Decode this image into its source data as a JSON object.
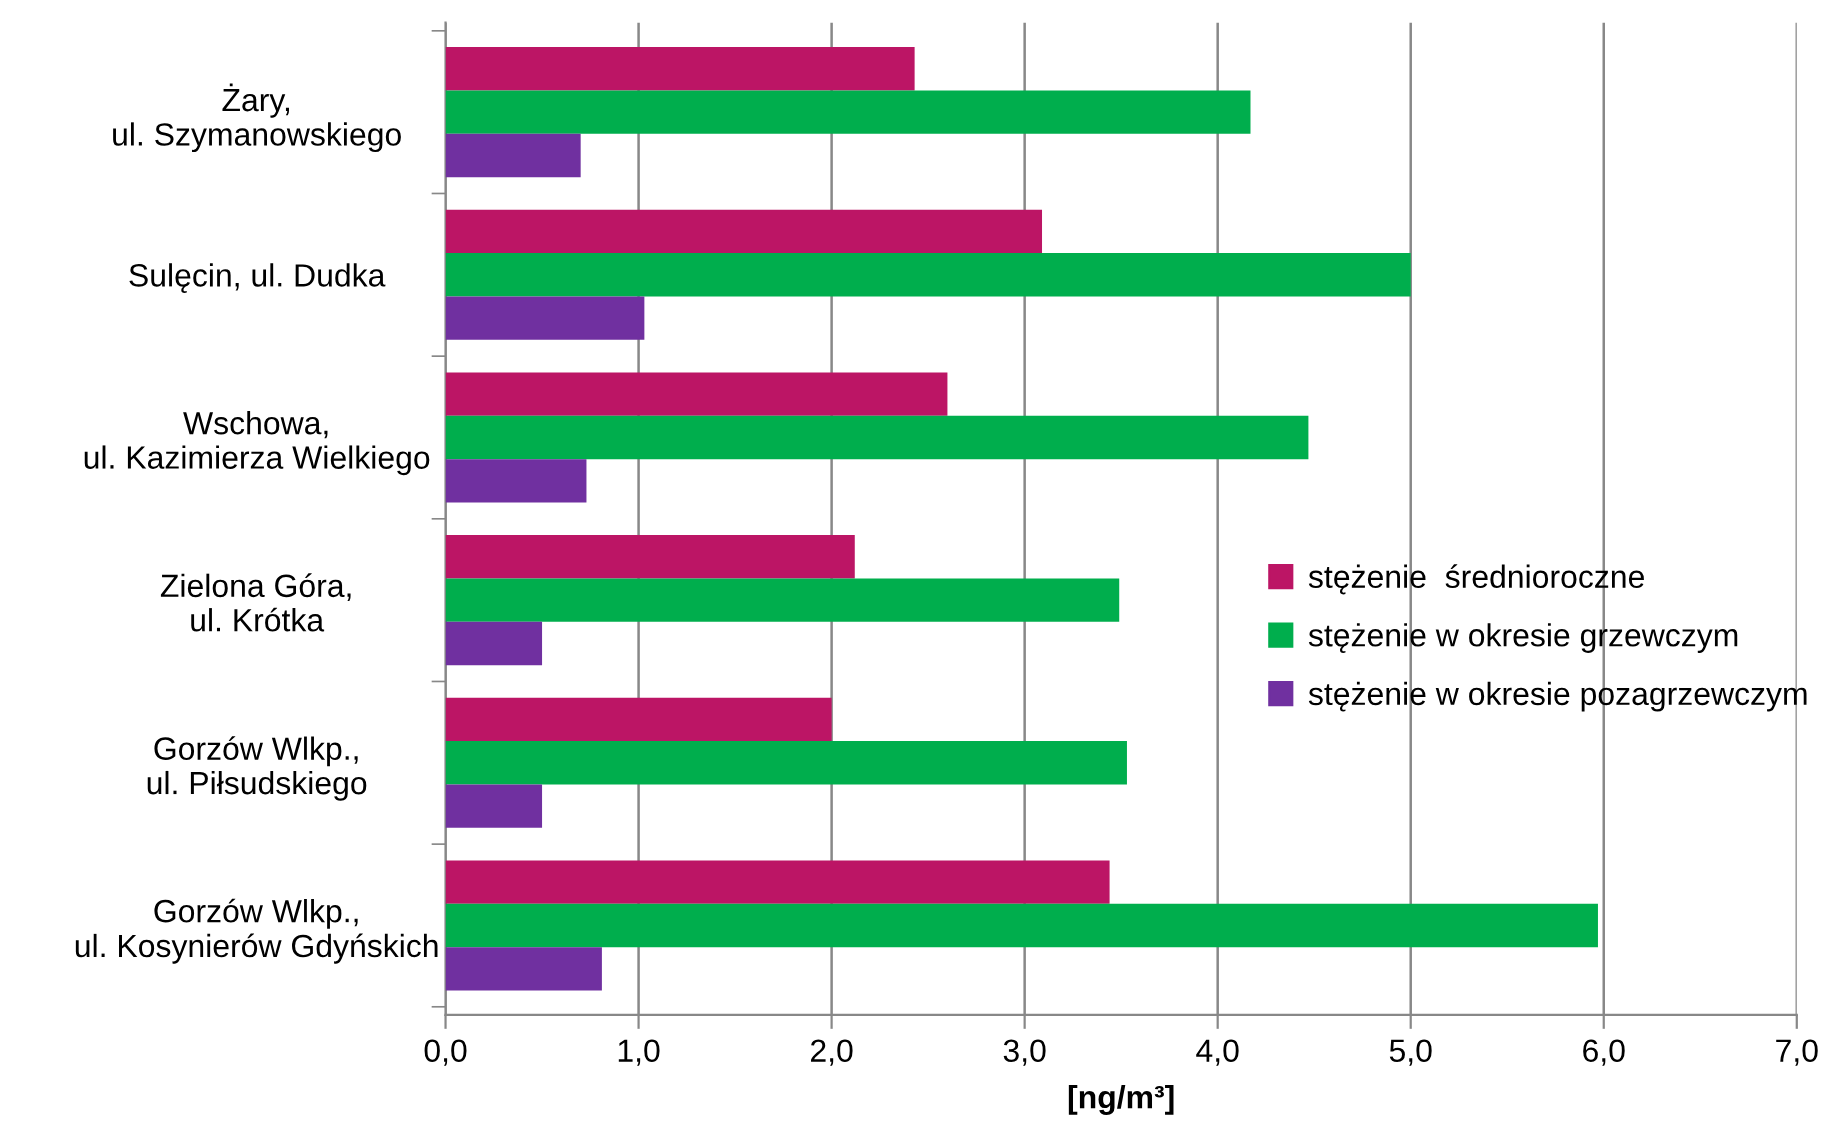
{
  "chart_data": {
    "type": "bar",
    "orientation": "horizontal",
    "xlabel": "[ng/m³]",
    "categories": [
      "Żary,\nul. Szymanowskiego",
      "Sulęcin, ul. Dudka",
      "Wschowa,\nul. Kazimierza Wielkiego",
      "Zielona Góra,\nul. Krótka",
      "Gorzów Wlkp.,\nul. Piłsudskiego",
      "Gorzów Wlkp.,\nul. Kosynierów Gdyńskich"
    ],
    "series": [
      {
        "name": "stężenie  średnioroczne",
        "color": "#bc1565",
        "values": [
          2.43,
          3.09,
          2.6,
          2.12,
          2.0,
          3.44
        ]
      },
      {
        "name": "stężenie w okresie grzewczym",
        "color": "#00ae4d",
        "values": [
          4.17,
          5.0,
          4.47,
          3.49,
          3.53,
          5.97
        ]
      },
      {
        "name": "stężenie w okresie pozagrzewczym",
        "color": "#7030a0",
        "values": [
          0.7,
          1.03,
          0.73,
          0.5,
          0.5,
          0.81
        ]
      }
    ],
    "xlim": [
      0,
      7
    ],
    "xticks": [
      {
        "value": 0,
        "label": "0,0"
      },
      {
        "value": 1,
        "label": "1,0"
      },
      {
        "value": 2,
        "label": "2,0"
      },
      {
        "value": 3,
        "label": "3,0"
      },
      {
        "value": 4,
        "label": "4,0"
      },
      {
        "value": 5,
        "label": "5,0"
      },
      {
        "value": 6,
        "label": "6,0"
      },
      {
        "value": 7,
        "label": "7,0"
      }
    ],
    "grid": "x",
    "legend": "right"
  }
}
